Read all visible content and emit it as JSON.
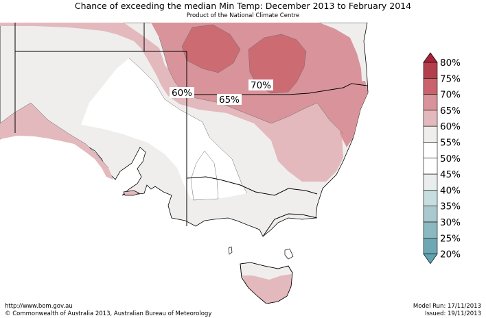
{
  "header": {
    "title": "Chance of exceeding the median Min Temp: December 2013 to February 2014",
    "subtitle": "Product of the National Climate Centre"
  },
  "footer": {
    "url": "http://www.bom.gov.au",
    "copyright": "©  Commonwealth of Australia 2013, Australian Bureau of Meteorology",
    "model_run": "Model Run: 17/11/2013",
    "issued": "Issued: 19/11/2013"
  },
  "map": {
    "contour_labels": [
      {
        "text": "60%",
        "value": 60
      },
      {
        "text": "65%",
        "value": 65
      },
      {
        "text": "70%",
        "value": 70
      }
    ],
    "colors": {
      "land_grey": "#efeeec",
      "white": "#ffffff",
      "p60": "#e3b9bd",
      "p65": "#d8949a",
      "p70": "#cd6b73"
    }
  },
  "legend": {
    "labels": [
      "80%",
      "75%",
      "70%",
      "65%",
      "60%",
      "55%",
      "50%",
      "45%",
      "40%",
      "35%",
      "30%",
      "25%",
      "20%"
    ],
    "colors": [
      "#b33e4c",
      "#c9626d",
      "#d8949a",
      "#e3b9bd",
      "#efeeec",
      "#ffffff",
      "#ffffff",
      "#e9edee",
      "#c7dde0",
      "#a9c9cf",
      "#8bb8c1",
      "#6fa8b4"
    ],
    "arrow_top_color": "#a8223a",
    "arrow_bottom_color": "#5fa3b1"
  }
}
